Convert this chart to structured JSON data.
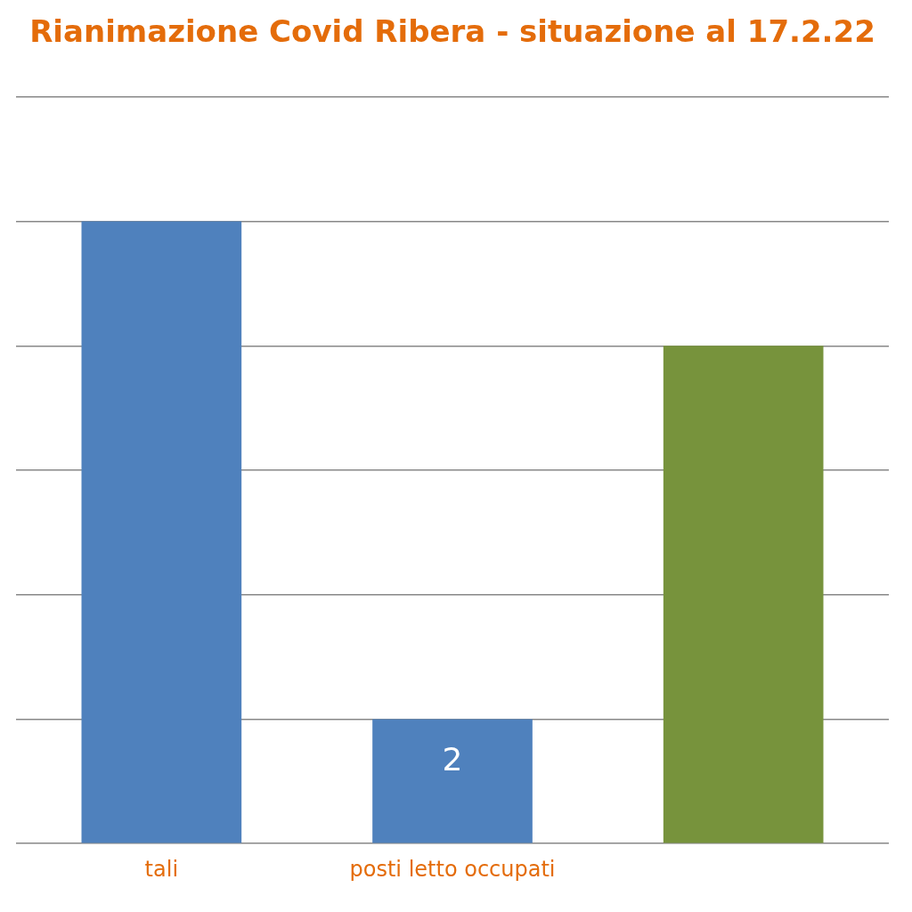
{
  "chart_data": {
    "type": "bar",
    "title": "Rianimazione Covid Ribera - situazione al 17.2.22",
    "categories": [
      "tali",
      "posti letto occupati",
      null
    ],
    "values": [
      10,
      2,
      8
    ],
    "colors": [
      "#4f81bd",
      "#4f81bd",
      "#77933c"
    ],
    "value_labels": [
      null,
      "2",
      null
    ],
    "ylim": [
      0,
      12
    ],
    "yticks": [
      {
        "value": 0,
        "label": null
      },
      {
        "value": 2,
        "label": null
      },
      {
        "value": 4,
        "label": null
      },
      {
        "value": 6,
        "label": null
      },
      {
        "value": 8,
        "label": null
      },
      {
        "value": 10,
        "label": null
      },
      {
        "value": 12,
        "label": null
      }
    ],
    "grid": "y",
    "legend": false,
    "tick_labels": "x"
  }
}
